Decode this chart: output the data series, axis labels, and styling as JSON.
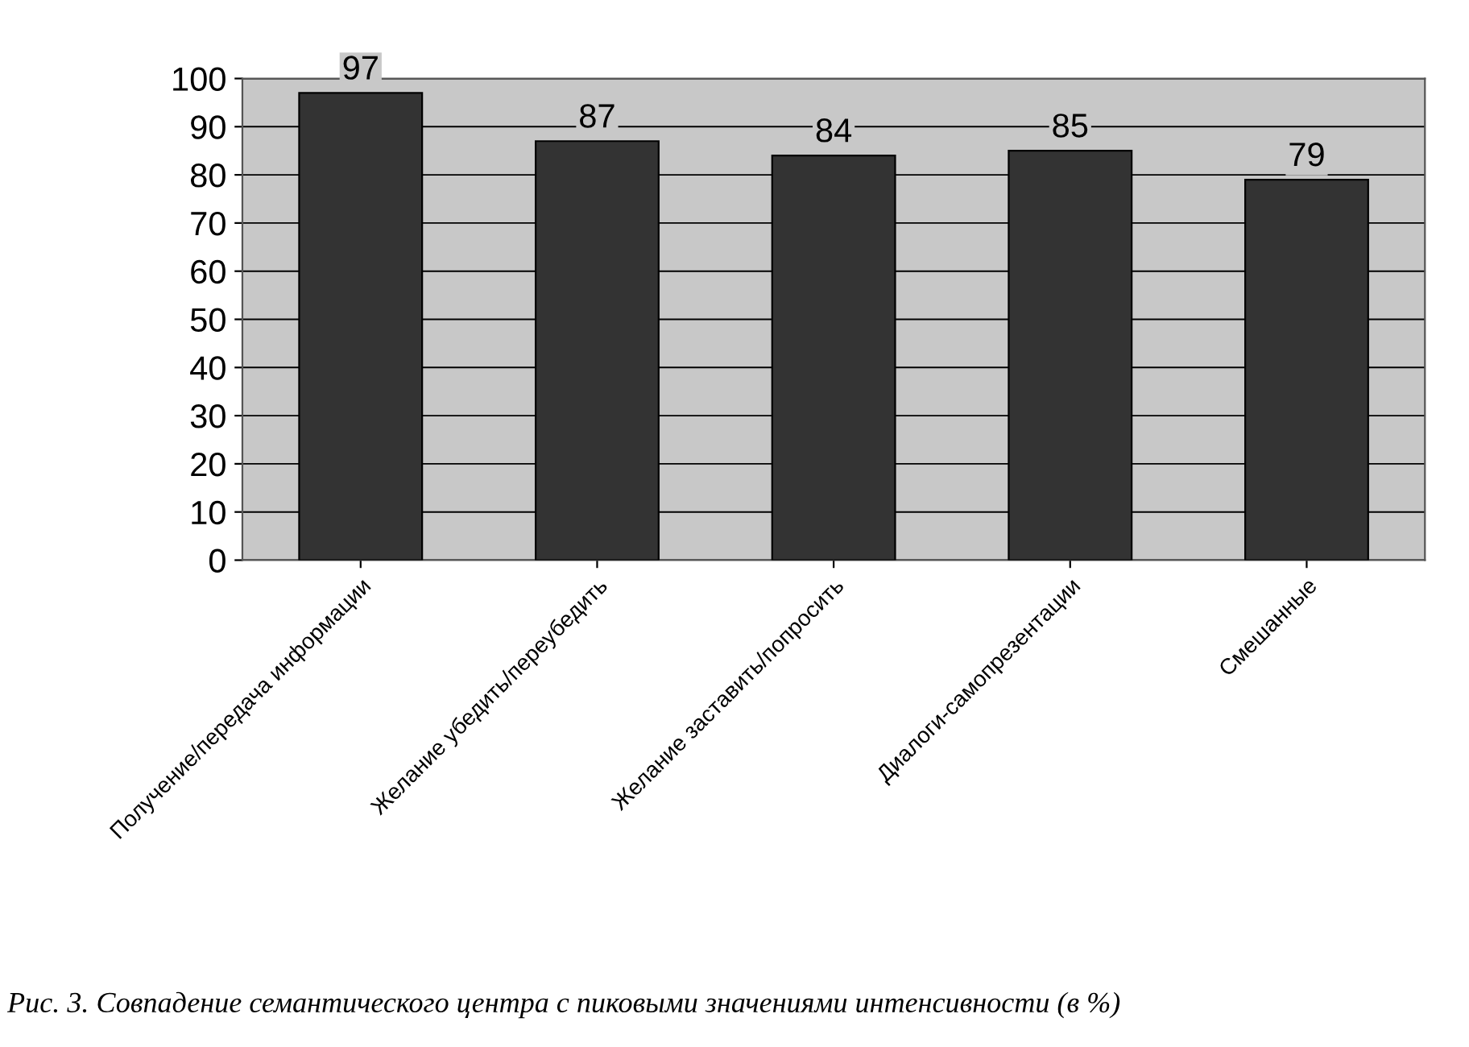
{
  "chart_data": {
    "type": "bar",
    "categories": [
      "Получение/передача информации",
      "Желание убедить/переубедить",
      "Желание заставить/попросить",
      "Диалоги-самопрезентации",
      "Смешанные"
    ],
    "values": [
      97,
      87,
      84,
      85,
      79
    ],
    "color": "#333333",
    "ylim": [
      0,
      100
    ],
    "yticks": [
      0,
      10,
      20,
      30,
      40,
      50,
      60,
      70,
      80,
      90,
      100
    ],
    "grid": "y",
    "data_labels": true,
    "legend": false,
    "annotations": [
      "Рис. 3. Совпадение семантического центра с пиковыми значениями интенсивности (в %)"
    ]
  }
}
